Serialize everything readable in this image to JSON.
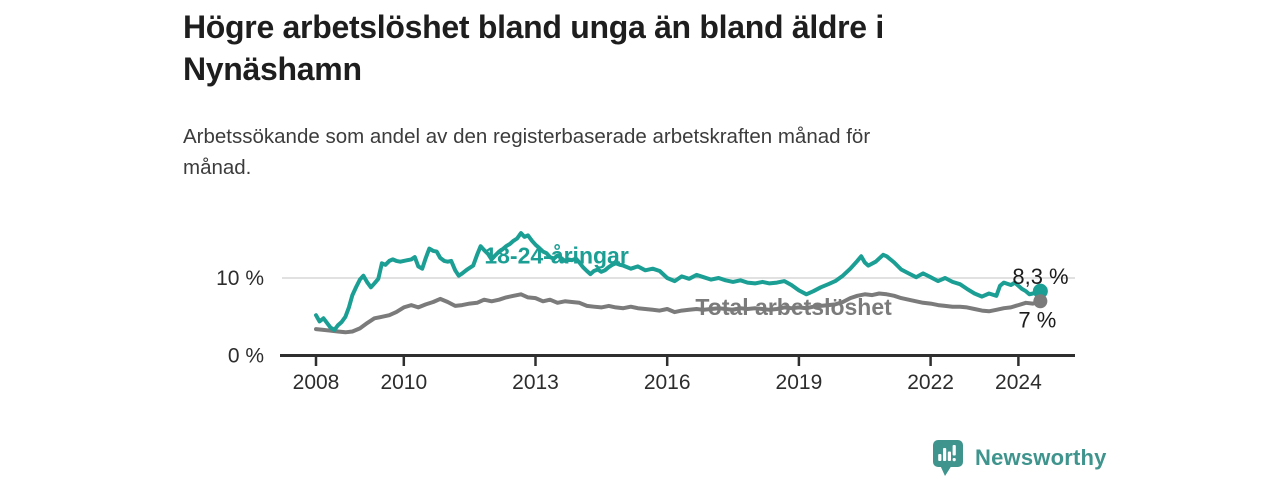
{
  "header": {
    "title_lines": [
      "Högre arbetslöshet bland unga än bland äldre i",
      "Nynäshamn"
    ],
    "subtitle_lines": [
      "Arbetssökande som andel av den registerbaserade arbetskraften månad för",
      "månad."
    ]
  },
  "footer": {
    "brand_name": "Newsworthy",
    "brand_icon": "bar-chart-speech-bubble-icon",
    "brand_color": "#3f948d"
  },
  "colors": {
    "accent_teal": "#1b9e94",
    "series_gray": "#7b7b7b",
    "axis": "#2f2f2f",
    "tick_text": "#2d2d2d",
    "gridline": "#d7d7d7",
    "end_label_text": "#1c1c1c",
    "background": "#ffffff"
  },
  "chart_data": {
    "type": "line",
    "title": "Högre arbetslöshet bland unga än bland äldre i Nynäshamn",
    "subtitle": "Arbetssökande som andel av den registerbaserade arbetskraften månad för månad.",
    "y_unit": "%",
    "x_range": [
      2008,
      2025.3
    ],
    "y_range": [
      0,
      17
    ],
    "grid": "single-line-at-10",
    "legend_position": "inline-labels",
    "x_ticks": [
      {
        "value": 2008,
        "label": "2008"
      },
      {
        "value": 2010,
        "label": "2010"
      },
      {
        "value": 2013,
        "label": "2013"
      },
      {
        "value": 2016,
        "label": "2016"
      },
      {
        "value": 2019,
        "label": "2019"
      },
      {
        "value": 2022,
        "label": "2022"
      },
      {
        "value": 2024,
        "label": "2024"
      }
    ],
    "y_ticks": [
      {
        "value": 0,
        "label": "0 %",
        "gridline": false
      },
      {
        "value": 10,
        "label": "10 %",
        "gridline": true
      }
    ],
    "series": [
      {
        "name": "18-24-åringar",
        "color": "#1b9e94",
        "line_width": 4,
        "end_value": 8.3,
        "end_label": "8,3 %",
        "end_label_offset": [
          -28,
          -7
        ],
        "end_dot_radius": 7.5,
        "name_label_pos": [
          2013.48,
          11.85
        ],
        "points": [
          [
            2008.0,
            5.2
          ],
          [
            2008.08,
            4.4
          ],
          [
            2008.17,
            4.8
          ],
          [
            2008.25,
            4.2
          ],
          [
            2008.33,
            3.6
          ],
          [
            2008.42,
            3.3
          ],
          [
            2008.5,
            3.9
          ],
          [
            2008.58,
            4.3
          ],
          [
            2008.67,
            5.0
          ],
          [
            2008.75,
            6.2
          ],
          [
            2008.83,
            7.8
          ],
          [
            2008.92,
            8.9
          ],
          [
            2009.0,
            9.8
          ],
          [
            2009.08,
            10.3
          ],
          [
            2009.17,
            9.4
          ],
          [
            2009.25,
            8.8
          ],
          [
            2009.33,
            9.3
          ],
          [
            2009.42,
            9.9
          ],
          [
            2009.5,
            11.9
          ],
          [
            2009.58,
            11.7
          ],
          [
            2009.67,
            12.2
          ],
          [
            2009.75,
            12.4
          ],
          [
            2009.83,
            12.2
          ],
          [
            2009.92,
            12.1
          ],
          [
            2010.0,
            12.2
          ],
          [
            2010.08,
            12.3
          ],
          [
            2010.17,
            12.4
          ],
          [
            2010.25,
            12.7
          ],
          [
            2010.33,
            11.5
          ],
          [
            2010.42,
            11.2
          ],
          [
            2010.5,
            12.6
          ],
          [
            2010.58,
            13.8
          ],
          [
            2010.67,
            13.5
          ],
          [
            2010.75,
            13.4
          ],
          [
            2010.83,
            12.6
          ],
          [
            2010.92,
            12.2
          ],
          [
            2011.0,
            12.1
          ],
          [
            2011.08,
            12.2
          ],
          [
            2011.17,
            11.0
          ],
          [
            2011.25,
            10.3
          ],
          [
            2011.33,
            10.6
          ],
          [
            2011.42,
            11.0
          ],
          [
            2011.5,
            11.3
          ],
          [
            2011.58,
            11.6
          ],
          [
            2011.67,
            13.0
          ],
          [
            2011.75,
            14.1
          ],
          [
            2011.83,
            13.6
          ],
          [
            2011.92,
            13.1
          ],
          [
            2012.0,
            12.4
          ],
          [
            2012.08,
            12.9
          ],
          [
            2012.17,
            13.4
          ],
          [
            2012.25,
            13.7
          ],
          [
            2012.33,
            14.1
          ],
          [
            2012.42,
            14.4
          ],
          [
            2012.5,
            14.8
          ],
          [
            2012.58,
            15.1
          ],
          [
            2012.67,
            15.8
          ],
          [
            2012.75,
            15.3
          ],
          [
            2012.83,
            15.5
          ],
          [
            2012.92,
            14.8
          ],
          [
            2013.0,
            14.3
          ],
          [
            2013.08,
            13.9
          ],
          [
            2013.17,
            13.4
          ],
          [
            2013.25,
            13.2
          ],
          [
            2013.33,
            12.7
          ],
          [
            2013.42,
            12.5
          ],
          [
            2013.5,
            12.9
          ],
          [
            2013.58,
            12.6
          ],
          [
            2013.67,
            12.2
          ],
          [
            2013.75,
            12.4
          ],
          [
            2013.83,
            12.3
          ],
          [
            2013.92,
            12.5
          ],
          [
            2014.0,
            12.0
          ],
          [
            2014.08,
            11.4
          ],
          [
            2014.17,
            10.9
          ],
          [
            2014.25,
            10.5
          ],
          [
            2014.33,
            10.9
          ],
          [
            2014.42,
            11.1
          ],
          [
            2014.5,
            10.8
          ],
          [
            2014.58,
            11.0
          ],
          [
            2014.67,
            11.4
          ],
          [
            2014.75,
            11.7
          ],
          [
            2014.83,
            11.9
          ],
          [
            2014.92,
            11.7
          ],
          [
            2015.0,
            11.6
          ],
          [
            2015.17,
            11.2
          ],
          [
            2015.33,
            11.5
          ],
          [
            2015.5,
            11.0
          ],
          [
            2015.67,
            11.2
          ],
          [
            2015.83,
            10.9
          ],
          [
            2016.0,
            10.0
          ],
          [
            2016.17,
            9.6
          ],
          [
            2016.33,
            10.2
          ],
          [
            2016.5,
            9.9
          ],
          [
            2016.67,
            10.4
          ],
          [
            2016.83,
            10.1
          ],
          [
            2017.0,
            9.8
          ],
          [
            2017.17,
            10.0
          ],
          [
            2017.33,
            9.7
          ],
          [
            2017.5,
            9.5
          ],
          [
            2017.67,
            9.7
          ],
          [
            2017.83,
            9.4
          ],
          [
            2018.0,
            9.3
          ],
          [
            2018.17,
            9.5
          ],
          [
            2018.33,
            9.3
          ],
          [
            2018.5,
            9.4
          ],
          [
            2018.67,
            9.6
          ],
          [
            2018.83,
            9.1
          ],
          [
            2019.0,
            8.4
          ],
          [
            2019.17,
            7.9
          ],
          [
            2019.33,
            8.3
          ],
          [
            2019.5,
            8.8
          ],
          [
            2019.67,
            9.2
          ],
          [
            2019.83,
            9.6
          ],
          [
            2020.0,
            10.3
          ],
          [
            2020.17,
            11.2
          ],
          [
            2020.33,
            12.2
          ],
          [
            2020.42,
            12.8
          ],
          [
            2020.5,
            12.0
          ],
          [
            2020.58,
            11.6
          ],
          [
            2020.75,
            12.1
          ],
          [
            2020.92,
            13.0
          ],
          [
            2021.0,
            12.8
          ],
          [
            2021.17,
            12.0
          ],
          [
            2021.33,
            11.1
          ],
          [
            2021.5,
            10.6
          ],
          [
            2021.67,
            10.1
          ],
          [
            2021.83,
            10.6
          ],
          [
            2022.0,
            10.1
          ],
          [
            2022.17,
            9.6
          ],
          [
            2022.33,
            10.0
          ],
          [
            2022.5,
            9.5
          ],
          [
            2022.67,
            9.2
          ],
          [
            2022.83,
            8.6
          ],
          [
            2023.0,
            8.0
          ],
          [
            2023.17,
            7.6
          ],
          [
            2023.33,
            8.0
          ],
          [
            2023.5,
            7.7
          ],
          [
            2023.58,
            9.0
          ],
          [
            2023.67,
            9.4
          ],
          [
            2023.83,
            9.1
          ],
          [
            2023.92,
            9.4
          ],
          [
            2024.0,
            9.0
          ],
          [
            2024.08,
            8.6
          ],
          [
            2024.17,
            8.3
          ],
          [
            2024.25,
            7.9
          ],
          [
            2024.33,
            8.0
          ],
          [
            2024.5,
            8.3
          ]
        ]
      },
      {
        "name": "Total arbetslöshet",
        "color": "#7b7b7b",
        "line_width": 4,
        "end_value": 7.0,
        "end_label": "7 %",
        "end_label_offset": [
          -22,
          26
        ],
        "end_dot_radius": 7,
        "name_label_pos": [
          2018.88,
          5.2
        ],
        "points": [
          [
            2008.0,
            3.4
          ],
          [
            2008.17,
            3.3
          ],
          [
            2008.33,
            3.2
          ],
          [
            2008.5,
            3.1
          ],
          [
            2008.67,
            3.0
          ],
          [
            2008.83,
            3.1
          ],
          [
            2009.0,
            3.5
          ],
          [
            2009.17,
            4.2
          ],
          [
            2009.33,
            4.8
          ],
          [
            2009.5,
            5.0
          ],
          [
            2009.67,
            5.2
          ],
          [
            2009.83,
            5.6
          ],
          [
            2010.0,
            6.2
          ],
          [
            2010.17,
            6.5
          ],
          [
            2010.33,
            6.2
          ],
          [
            2010.5,
            6.6
          ],
          [
            2010.67,
            6.9
          ],
          [
            2010.83,
            7.3
          ],
          [
            2011.0,
            6.9
          ],
          [
            2011.17,
            6.4
          ],
          [
            2011.33,
            6.5
          ],
          [
            2011.5,
            6.7
          ],
          [
            2011.67,
            6.8
          ],
          [
            2011.83,
            7.2
          ],
          [
            2012.0,
            7.0
          ],
          [
            2012.17,
            7.2
          ],
          [
            2012.33,
            7.5
          ],
          [
            2012.5,
            7.7
          ],
          [
            2012.67,
            7.9
          ],
          [
            2012.83,
            7.5
          ],
          [
            2013.0,
            7.4
          ],
          [
            2013.17,
            7.0
          ],
          [
            2013.33,
            7.2
          ],
          [
            2013.5,
            6.8
          ],
          [
            2013.67,
            7.0
          ],
          [
            2013.83,
            6.9
          ],
          [
            2014.0,
            6.8
          ],
          [
            2014.17,
            6.4
          ],
          [
            2014.33,
            6.3
          ],
          [
            2014.5,
            6.2
          ],
          [
            2014.67,
            6.4
          ],
          [
            2014.83,
            6.2
          ],
          [
            2015.0,
            6.1
          ],
          [
            2015.17,
            6.3
          ],
          [
            2015.33,
            6.1
          ],
          [
            2015.5,
            6.0
          ],
          [
            2015.67,
            5.9
          ],
          [
            2015.83,
            5.8
          ],
          [
            2016.0,
            6.0
          ],
          [
            2016.17,
            5.6
          ],
          [
            2016.33,
            5.8
          ],
          [
            2016.5,
            5.9
          ],
          [
            2016.67,
            6.0
          ],
          [
            2016.83,
            5.9
          ],
          [
            2017.0,
            6.0
          ],
          [
            2017.17,
            6.1
          ],
          [
            2017.33,
            6.0
          ],
          [
            2017.5,
            5.9
          ],
          [
            2017.67,
            6.1
          ],
          [
            2017.83,
            6.0
          ],
          [
            2018.0,
            6.1
          ],
          [
            2018.17,
            6.0
          ],
          [
            2018.33,
            5.9
          ],
          [
            2018.5,
            6.0
          ],
          [
            2018.67,
            6.2
          ],
          [
            2018.83,
            6.1
          ],
          [
            2019.0,
            6.2
          ],
          [
            2019.17,
            6.1
          ],
          [
            2019.33,
            6.3
          ],
          [
            2019.5,
            6.4
          ],
          [
            2019.67,
            6.5
          ],
          [
            2019.83,
            6.6
          ],
          [
            2020.0,
            6.9
          ],
          [
            2020.17,
            7.4
          ],
          [
            2020.33,
            7.7
          ],
          [
            2020.5,
            7.9
          ],
          [
            2020.67,
            7.8
          ],
          [
            2020.83,
            8.0
          ],
          [
            2021.0,
            7.9
          ],
          [
            2021.17,
            7.7
          ],
          [
            2021.33,
            7.4
          ],
          [
            2021.5,
            7.2
          ],
          [
            2021.67,
            7.0
          ],
          [
            2021.83,
            6.8
          ],
          [
            2022.0,
            6.7
          ],
          [
            2022.17,
            6.5
          ],
          [
            2022.33,
            6.4
          ],
          [
            2022.5,
            6.3
          ],
          [
            2022.67,
            6.3
          ],
          [
            2022.83,
            6.2
          ],
          [
            2023.0,
            6.0
          ],
          [
            2023.17,
            5.8
          ],
          [
            2023.33,
            5.7
          ],
          [
            2023.5,
            5.9
          ],
          [
            2023.67,
            6.1
          ],
          [
            2023.83,
            6.2
          ],
          [
            2024.0,
            6.5
          ],
          [
            2024.17,
            6.8
          ],
          [
            2024.33,
            6.7
          ],
          [
            2024.5,
            7.0
          ]
        ]
      }
    ]
  }
}
